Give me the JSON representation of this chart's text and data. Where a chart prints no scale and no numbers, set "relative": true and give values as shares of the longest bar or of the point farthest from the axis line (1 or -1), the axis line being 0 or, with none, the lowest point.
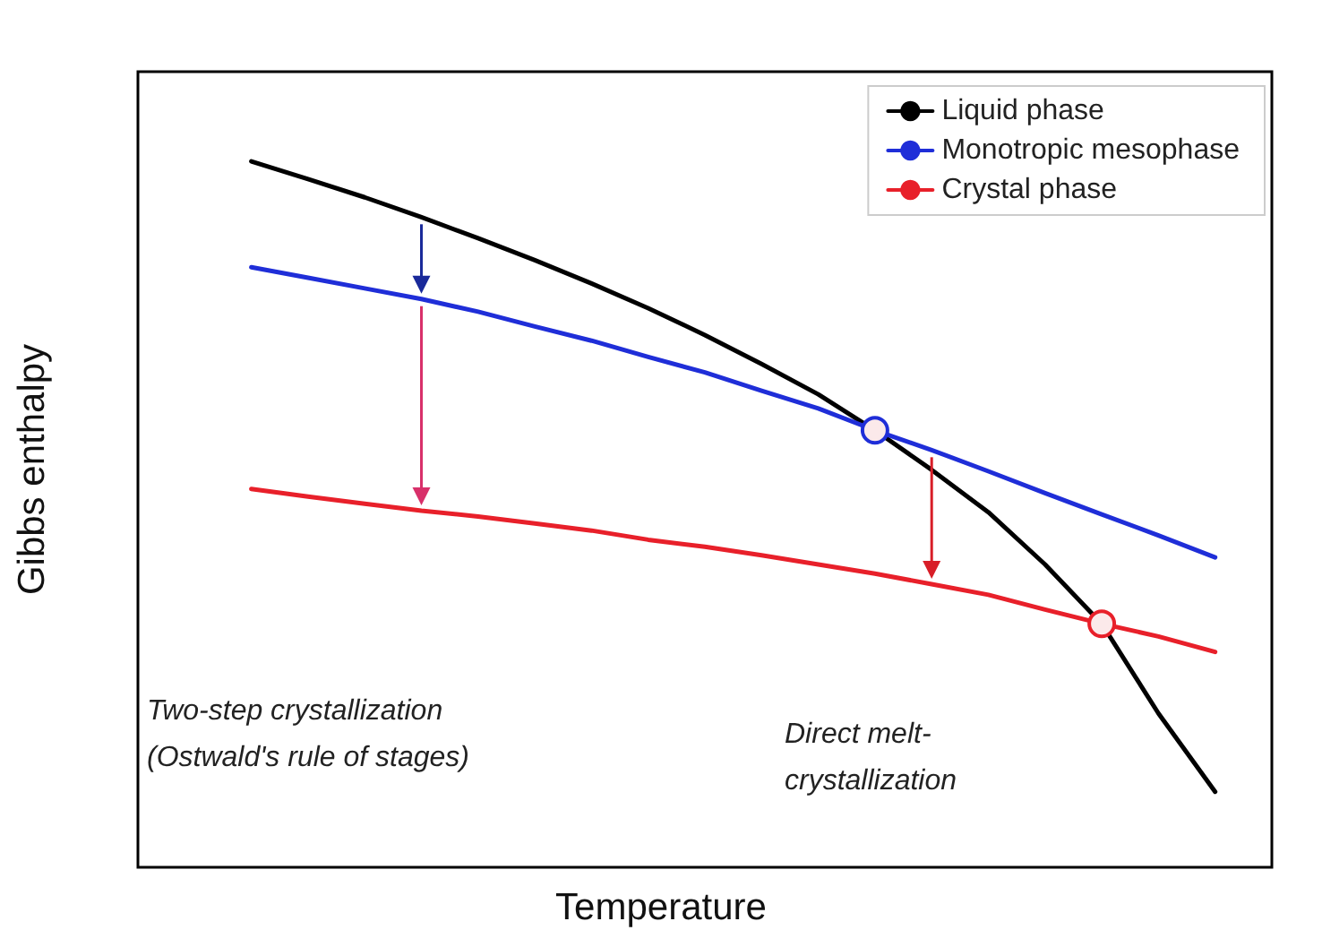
{
  "chart_data": {
    "type": "line",
    "relative": true,
    "xlabel": "Temperature",
    "ylabel": "Gibbs enthalpy",
    "categories": [
      null,
      null,
      null,
      null,
      null,
      null,
      null,
      null,
      null,
      null,
      null,
      null,
      null,
      null,
      null,
      null,
      null,
      null,
      null,
      null,
      null
    ],
    "series": [
      {
        "name": "Liquid phase",
        "color": "#000000",
        "values": [
          null,
          null,
          1,
          0.975,
          0.949,
          0.921,
          0.891,
          0.86,
          0.827,
          0.792,
          0.754,
          0.713,
          0.67,
          0.619,
          0.563,
          0.503,
          0.429,
          0.345,
          0.218,
          0.107,
          null
        ]
      },
      {
        "name": "Monotropic mesophase",
        "color": "#1f2ed8",
        "values": [
          null,
          null,
          0.85,
          0.835,
          0.82,
          0.805,
          0.787,
          0.766,
          0.746,
          0.723,
          0.701,
          0.675,
          0.65,
          0.619,
          0.591,
          0.561,
          0.53,
          0.5,
          0.47,
          0.439,
          null
        ]
      },
      {
        "name": "Crystal phase",
        "color": "#e8202a",
        "values": [
          null,
          null,
          0.536,
          0.525,
          0.515,
          0.505,
          0.497,
          0.487,
          0.477,
          0.464,
          0.454,
          0.442,
          0.429,
          0.416,
          0.401,
          0.386,
          0.365,
          0.345,
          0.327,
          0.305,
          null
        ]
      }
    ],
    "annotations": [
      "Two-step crystallization\n(Ostwald's rule of stages)",
      "Direct melt-\ncrystallization"
    ],
    "legend": "top right",
    "grid": false,
    "marker": "none",
    "line_style": "solid"
  }
}
